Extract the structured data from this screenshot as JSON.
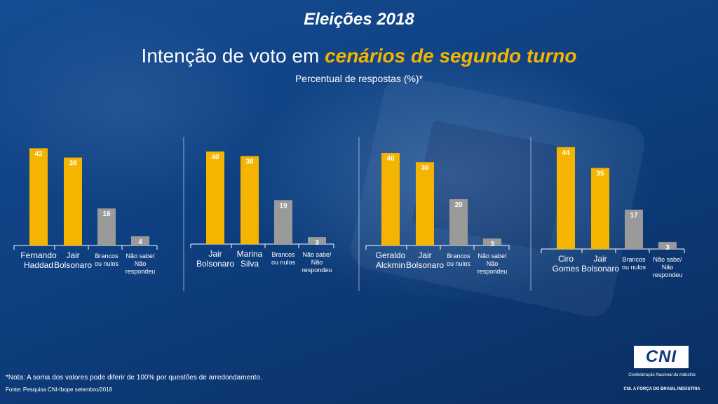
{
  "header": {
    "headline": "Eleições 2018",
    "title_plain": "Intenção de voto em ",
    "title_accent": "cenários de segundo turno",
    "subtitle": "Percentual de respostas (%)*"
  },
  "colors": {
    "candidate_bar": "#f5b400",
    "other_bar": "#9a9a9a",
    "accent_text": "#f5b400"
  },
  "chart_data": [
    {
      "type": "bar",
      "categories": [
        "Fernando Haddad",
        "Jair Bolsonaro",
        "Brancos ou nulos",
        "Não sabe/ Não respondeu"
      ],
      "category_lines": [
        [
          "Fernando",
          "Haddad"
        ],
        [
          "Jair",
          "Bolsonaro"
        ],
        [
          "Brancos",
          "ou nulos"
        ],
        [
          "Não sabe/",
          "Não",
          "respondeu"
        ]
      ],
      "values": [
        42,
        38,
        16,
        4
      ],
      "bar_colors": [
        "#f5b400",
        "#f5b400",
        "#9a9a9a",
        "#9a9a9a"
      ],
      "ylim": [
        0,
        50
      ]
    },
    {
      "type": "bar",
      "categories": [
        "Jair Bolsonaro",
        "Marina Silva",
        "Brancos ou nulos",
        "Não sabe/ Não respondeu"
      ],
      "category_lines": [
        [
          "Jair",
          "Bolsonaro"
        ],
        [
          "Marina",
          "Silva"
        ],
        [
          "Brancos",
          "ou nulos"
        ],
        [
          "Não sabe/",
          "Não",
          "respondeu"
        ]
      ],
      "values": [
        40,
        38,
        19,
        3
      ],
      "bar_colors": [
        "#f5b400",
        "#f5b400",
        "#9a9a9a",
        "#9a9a9a"
      ],
      "ylim": [
        0,
        50
      ]
    },
    {
      "type": "bar",
      "categories": [
        "Geraldo Alckmin",
        "Jair Bolsonaro",
        "Brancos ou nulos",
        "Não sabe/ Não respondeu"
      ],
      "category_lines": [
        [
          "Geraldo",
          "Alckmin"
        ],
        [
          "Jair",
          "Bolsonaro"
        ],
        [
          "Brancos",
          "ou nulos"
        ],
        [
          "Não sabe/",
          "Não",
          "respondeu"
        ]
      ],
      "values": [
        40,
        36,
        20,
        3
      ],
      "bar_colors": [
        "#f5b400",
        "#f5b400",
        "#9a9a9a",
        "#9a9a9a"
      ],
      "ylim": [
        0,
        50
      ]
    },
    {
      "type": "bar",
      "categories": [
        "Ciro Gomes",
        "Jair Bolsonaro",
        "Brancos ou nulos",
        "Não sabe/ Não respondeu"
      ],
      "category_lines": [
        [
          "Ciro",
          "Gomes"
        ],
        [
          "Jair",
          "Bolsonaro"
        ],
        [
          "Brancos",
          "ou nulos"
        ],
        [
          "Não sabe/",
          "Não",
          "respondeu"
        ]
      ],
      "values": [
        44,
        35,
        17,
        3
      ],
      "bar_colors": [
        "#f5b400",
        "#f5b400",
        "#9a9a9a",
        "#9a9a9a"
      ],
      "ylim": [
        0,
        50
      ]
    }
  ],
  "footer": {
    "note": "*Nota: A soma dos valores pode diferir de 100% por questões de arredondamento.",
    "source": "Fonte: Pesquisa CNI-Ibope setembro/2018",
    "logo_text": "CNI",
    "logo_caption": "Confederação Nacional da Indústria",
    "slogan": "CNI. A FORÇA DO BRASIL INDÚSTRIA"
  }
}
